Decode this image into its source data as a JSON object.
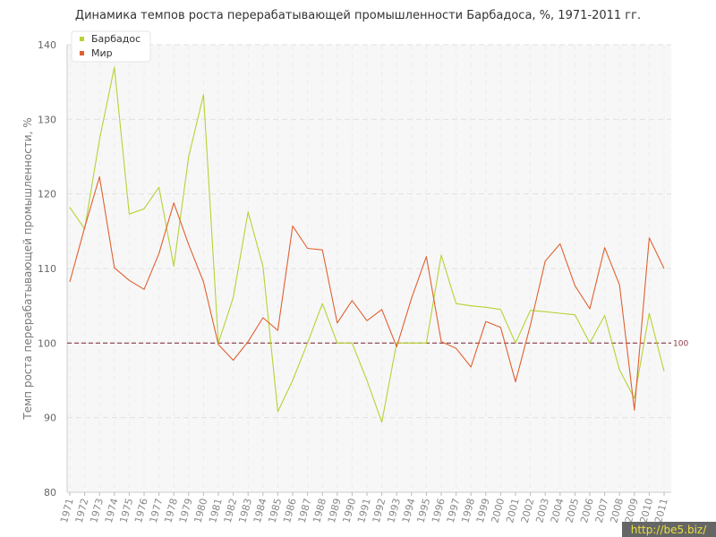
{
  "chart_data": {
    "type": "line",
    "title": "Динамика темпов роста перерабатывающей промышленности Барбадоса, %, 1971-2011 гг.",
    "ylabel": "Темп роста перерабатывающей промышленности, %",
    "ylim": [
      80,
      140
    ],
    "yticks": [
      80,
      90,
      100,
      110,
      120,
      130,
      140
    ],
    "categories": [
      "1971",
      "1972",
      "1973",
      "1974",
      "1975",
      "1976",
      "1977",
      "1978",
      "1979",
      "1980",
      "1981",
      "1982",
      "1983",
      "1984",
      "1985",
      "1986",
      "1987",
      "1988",
      "1989",
      "1990",
      "1991",
      "1992",
      "1993",
      "1994",
      "1995",
      "1996",
      "1997",
      "1998",
      "1999",
      "2000",
      "2001",
      "2002",
      "2003",
      "2004",
      "2005",
      "2006",
      "2007",
      "2008",
      "2009",
      "2010",
      "2011"
    ],
    "series": [
      {
        "name": "Барбадос",
        "color": "#b5d334",
        "values": [
          118.2,
          115.3,
          127.3,
          137.0,
          117.3,
          118.0,
          120.9,
          110.3,
          125.0,
          133.3,
          100.0,
          106.1,
          117.6,
          110.3,
          90.8,
          95.0,
          100.0,
          105.3,
          100.0,
          100.0,
          95.0,
          89.4,
          100.0,
          100.0,
          100.0,
          111.8,
          105.3,
          105.0,
          104.8,
          104.5,
          100.0,
          104.4,
          104.2,
          104.0,
          103.8,
          100.0,
          103.7,
          96.4,
          92.6,
          104.0,
          96.2
        ]
      },
      {
        "name": "Мир",
        "color": "#e06030",
        "values": [
          108.2,
          115.5,
          122.3,
          110.1,
          108.4,
          107.2,
          112.0,
          118.8,
          113.2,
          108.2,
          99.8,
          97.7,
          100.2,
          103.4,
          101.7,
          115.7,
          112.7,
          112.5,
          102.7,
          105.7,
          103.0,
          104.5,
          99.5,
          106.0,
          111.6,
          100.2,
          99.3,
          96.8,
          102.9,
          102.1,
          94.8,
          102.4,
          111.0,
          113.3,
          107.7,
          104.6,
          112.8,
          107.8,
          91.0,
          114.1,
          110.0
        ]
      }
    ],
    "reference_line": {
      "value": 100,
      "label": "100",
      "color": "#8a3a4a"
    },
    "grid": true,
    "legend_position": "top-left"
  },
  "watermark": "http://be5.biz/"
}
